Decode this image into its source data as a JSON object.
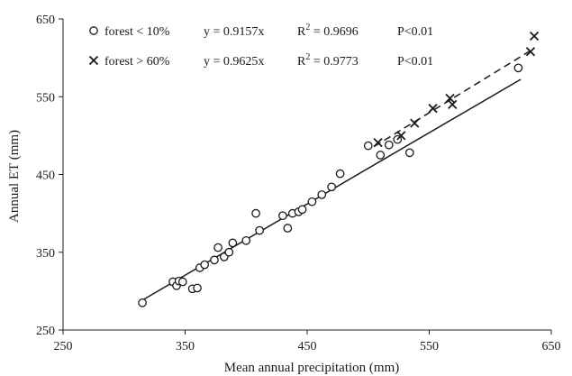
{
  "chart_data": {
    "type": "scatter",
    "xlabel": "Mean annual precipitation (mm)",
    "ylabel": "Annual ET  (mm)",
    "xlim": [
      250,
      650
    ],
    "ylim": [
      250,
      650
    ],
    "x_ticks": [
      "250",
      "350",
      "450",
      "550",
      "650"
    ],
    "y_ticks": [
      "250",
      "350",
      "450",
      "550",
      "650"
    ],
    "grid": false,
    "legend_position": "top-left",
    "series": [
      {
        "name": "forest < 10%",
        "marker": "circle",
        "equation": "y = 0.9157x",
        "r2_prefix": "R",
        "r2_sup": "2",
        "r2_value": " = 0.9696",
        "p_value": "P<0.01",
        "fit_slope": 0.9157,
        "fit_style": "solid",
        "fit_x_range": [
          315,
          625
        ],
        "points": [
          [
            315,
            285
          ],
          [
            340,
            312
          ],
          [
            343,
            307
          ],
          [
            345,
            313
          ],
          [
            348,
            312
          ],
          [
            356,
            303
          ],
          [
            360,
            304
          ],
          [
            362,
            330
          ],
          [
            366,
            334
          ],
          [
            374,
            340
          ],
          [
            377,
            356
          ],
          [
            382,
            344
          ],
          [
            386,
            350
          ],
          [
            389,
            362
          ],
          [
            400,
            365
          ],
          [
            408,
            400
          ],
          [
            411,
            378
          ],
          [
            430,
            397
          ],
          [
            434,
            381
          ],
          [
            438,
            400
          ],
          [
            443,
            402
          ],
          [
            446,
            405
          ],
          [
            454,
            415
          ],
          [
            462,
            424
          ],
          [
            470,
            434
          ],
          [
            477,
            451
          ],
          [
            500,
            487
          ],
          [
            510,
            475
          ],
          [
            517,
            488
          ],
          [
            524,
            495
          ],
          [
            534,
            478
          ],
          [
            623,
            587
          ]
        ]
      },
      {
        "name": "forest > 60%",
        "marker": "x",
        "equation": "y = 0.9625x",
        "r2_prefix": "R",
        "r2_sup": "2",
        "r2_value": " = 0.9773",
        "p_value": "P<0.01",
        "fit_slope": 0.9625,
        "fit_style": "dashed",
        "fit_x_range": [
          505,
          635
        ],
        "points": [
          [
            508,
            491
          ],
          [
            527,
            500
          ],
          [
            538,
            516
          ],
          [
            553,
            535
          ],
          [
            567,
            548
          ],
          [
            569,
            540
          ],
          [
            633,
            608
          ],
          [
            636,
            628
          ]
        ]
      }
    ]
  }
}
